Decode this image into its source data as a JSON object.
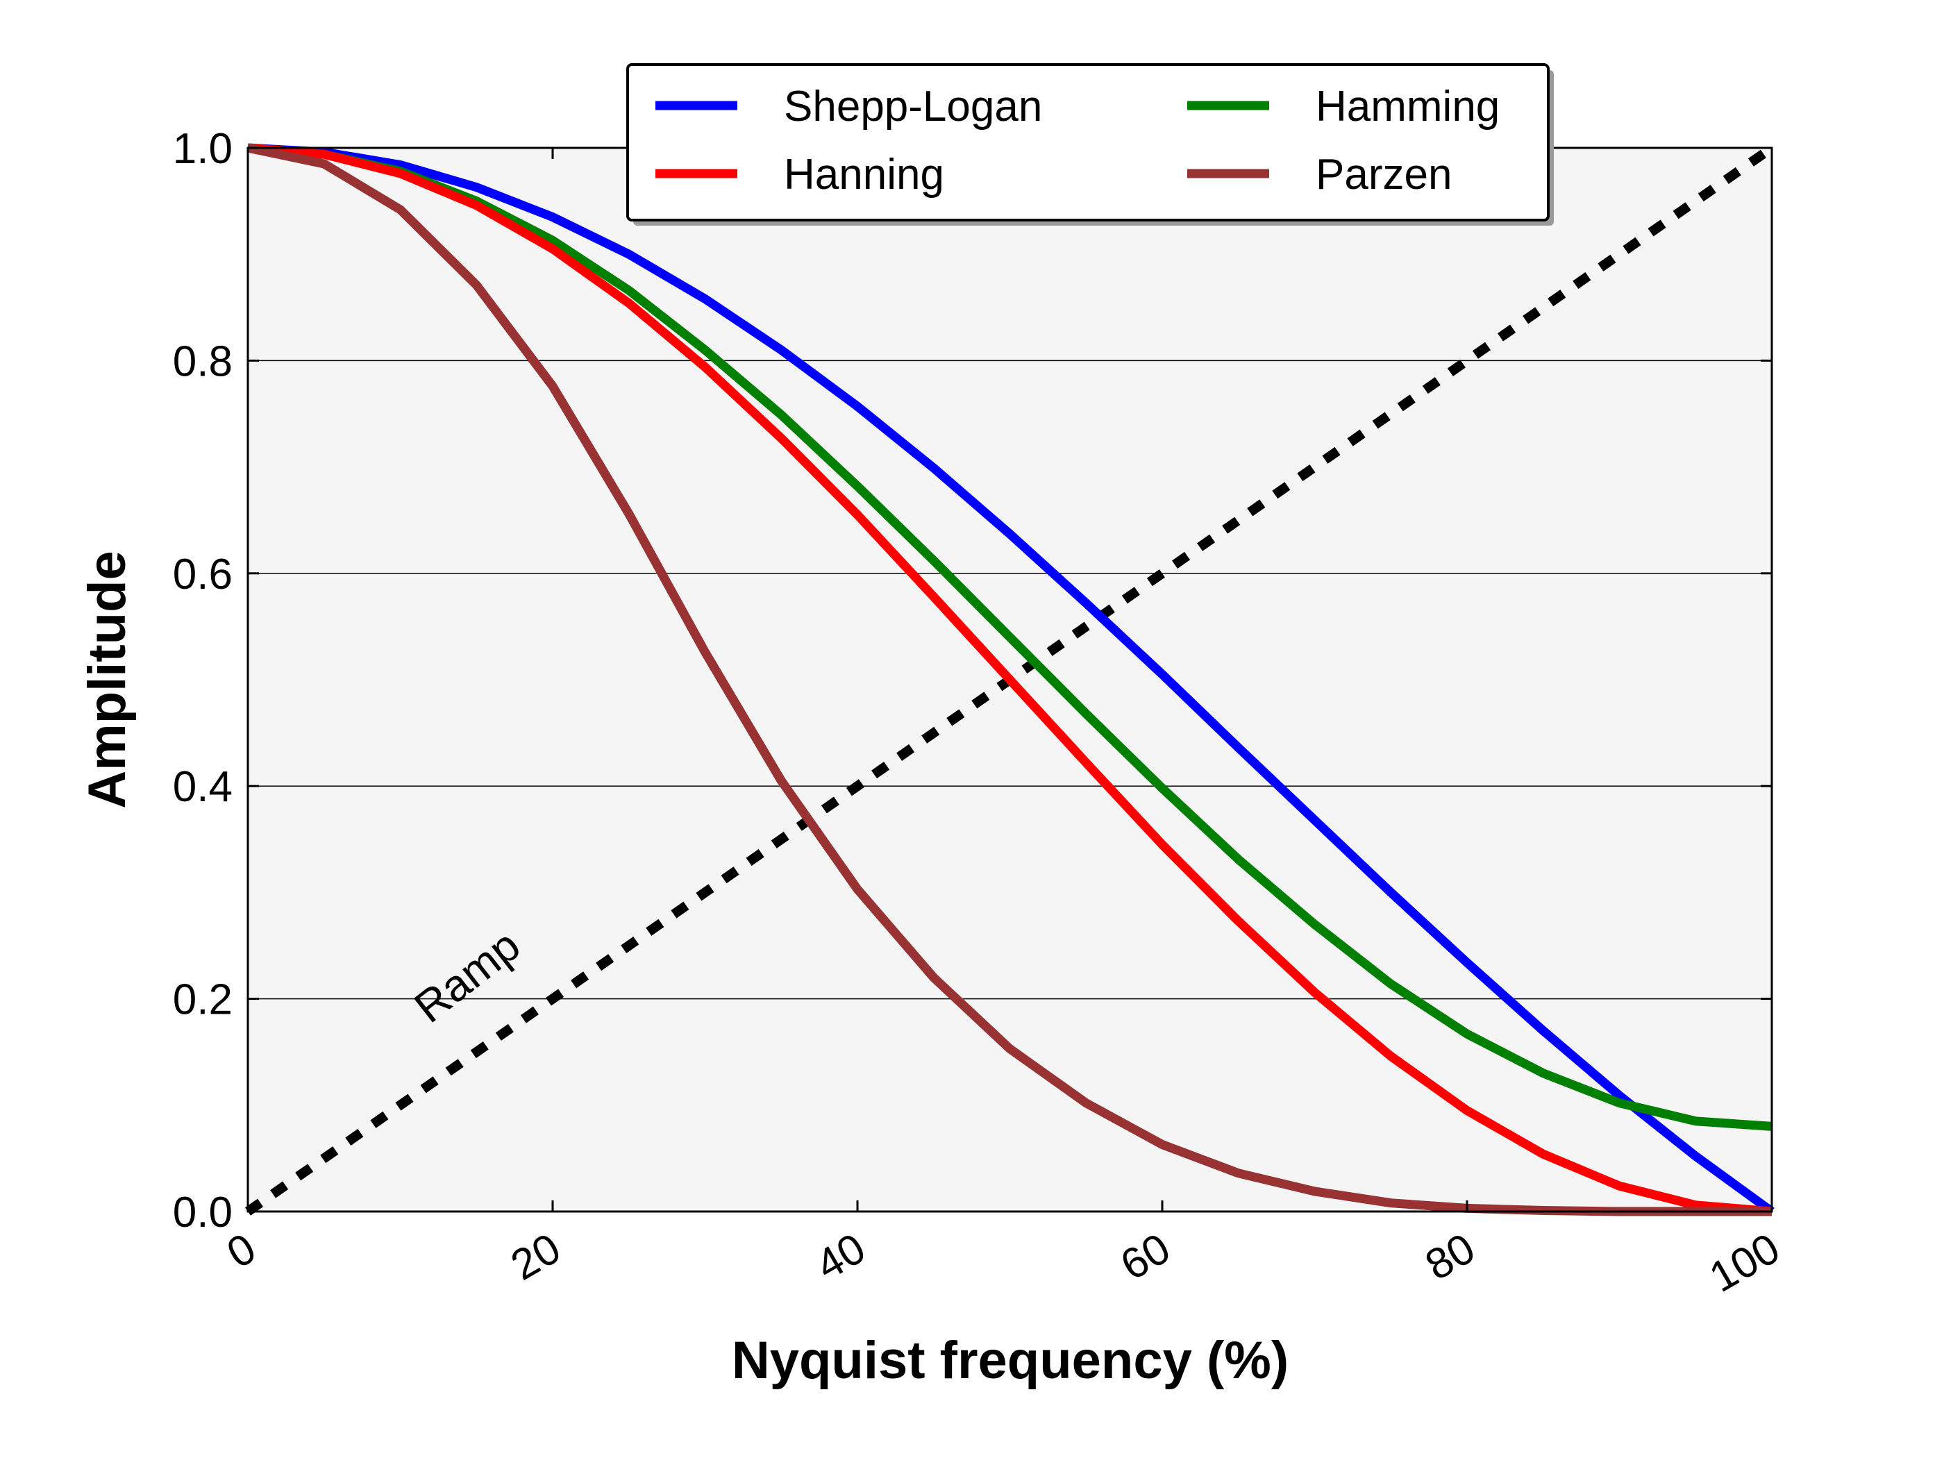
{
  "chart_data": {
    "type": "line",
    "title": "",
    "xlabel": "Nyquist frequency (%)",
    "ylabel": "Amplitude",
    "xlim": [
      0,
      100
    ],
    "ylim": [
      0.0,
      1.0
    ],
    "xticks": [
      "0",
      "20",
      "40",
      "60",
      "80",
      "100"
    ],
    "yticks": [
      "0.0",
      "0.2",
      "0.4",
      "0.6",
      "0.8",
      "1.0"
    ],
    "grid": "horizontal",
    "legend_position": "top-center",
    "x": [
      0,
      5,
      10,
      15,
      20,
      25,
      30,
      35,
      40,
      45,
      50,
      55,
      60,
      65,
      70,
      75,
      80,
      85,
      90,
      95,
      100
    ],
    "series": [
      {
        "name": "Shepp-Logan",
        "color": "#0000ff",
        "values": [
          1.0,
          0.996,
          0.984,
          0.963,
          0.935,
          0.9,
          0.858,
          0.81,
          0.757,
          0.699,
          0.637,
          0.572,
          0.505,
          0.436,
          0.368,
          0.3,
          0.234,
          0.17,
          0.109,
          0.052,
          0.0
        ]
      },
      {
        "name": "Hanning",
        "color": "#ff0000",
        "values": [
          1.0,
          0.994,
          0.976,
          0.946,
          0.905,
          0.854,
          0.794,
          0.727,
          0.655,
          0.578,
          0.5,
          0.422,
          0.345,
          0.273,
          0.206,
          0.146,
          0.095,
          0.054,
          0.024,
          0.006,
          0.0
        ]
      },
      {
        "name": "Hamming",
        "color": "#008000",
        "values": [
          1.0,
          0.994,
          0.978,
          0.95,
          0.913,
          0.866,
          0.81,
          0.749,
          0.682,
          0.612,
          0.54,
          0.468,
          0.398,
          0.331,
          0.27,
          0.214,
          0.167,
          0.13,
          0.102,
          0.085,
          0.08
        ]
      },
      {
        "name": "Parzen",
        "color": "#993333",
        "values": [
          1.0,
          0.985,
          0.942,
          0.871,
          0.776,
          0.656,
          0.526,
          0.405,
          0.303,
          0.22,
          0.153,
          0.102,
          0.063,
          0.036,
          0.019,
          0.008,
          0.003,
          0.001,
          0.0,
          0.0,
          0.0
        ]
      },
      {
        "name": "",
        "color": "#000000",
        "dashed": true,
        "values": [
          0.0,
          0.05,
          0.1,
          0.15,
          0.2,
          0.25,
          0.3,
          0.35,
          0.4,
          0.45,
          0.5,
          0.55,
          0.6,
          0.65,
          0.7,
          0.75,
          0.8,
          0.85,
          0.9,
          0.95,
          1.0
        ]
      }
    ],
    "annotations": [
      {
        "text": "Ramp",
        "x": 15,
        "y": 0.21,
        "rotation": -38
      }
    ],
    "plot_background": "#f5f5f5"
  }
}
